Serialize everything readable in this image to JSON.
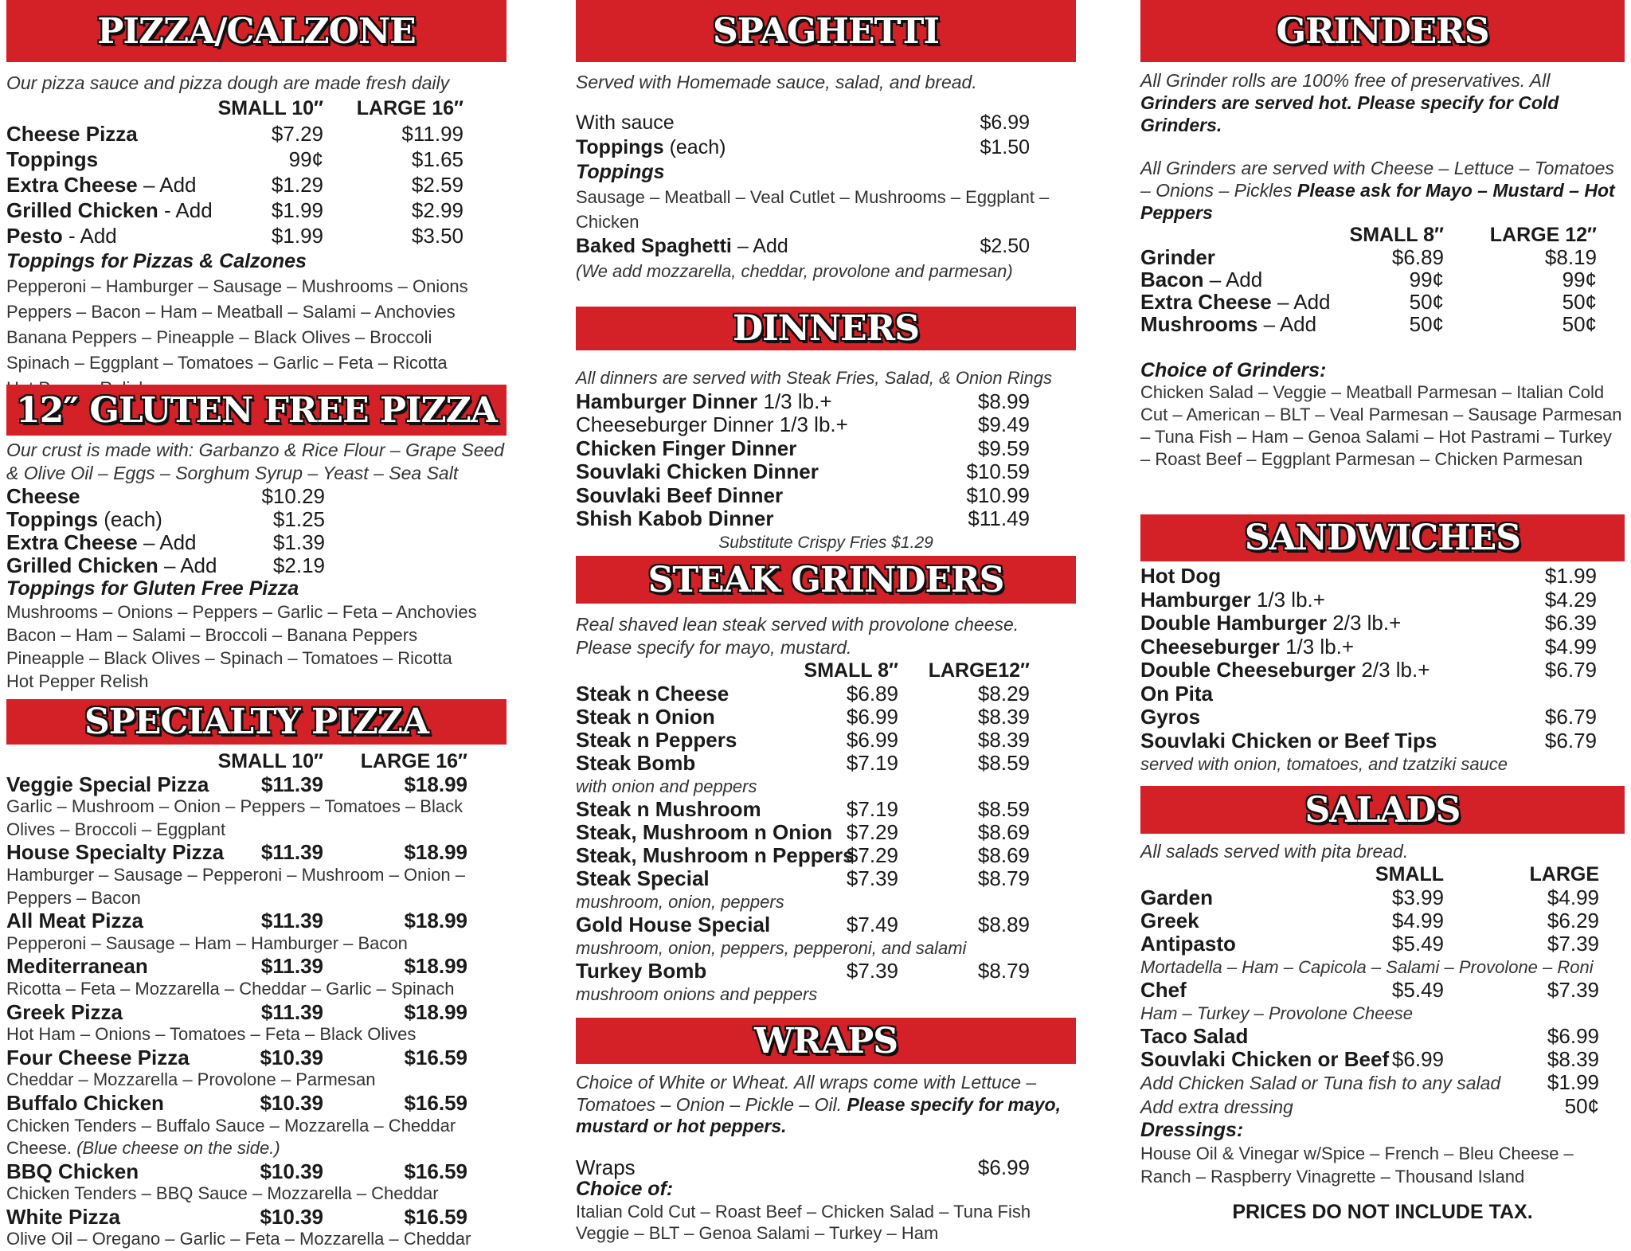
{
  "columns": [
    {
      "sections": [
        {
          "title": "PIZZA/CALZONE",
          "rows": [
            {
              "t": "note",
              "text": "Our pizza sauce and pizza dough are made fresh daily"
            },
            {
              "t": "cols",
              "prices": [
                "SMALL 10″",
                "LARGE 16″"
              ]
            },
            {
              "t": "item",
              "name": "Cheese Pizza",
              "prices": [
                "$7.29",
                "$11.99"
              ]
            },
            {
              "t": "item",
              "name": "Toppings",
              "prices": [
                "99¢",
                "$1.65"
              ]
            },
            {
              "t": "item",
              "name": "Extra Cheese",
              "suffix": " – Add",
              "prices": [
                "$1.29",
                "$2.59"
              ]
            },
            {
              "t": "item",
              "name": "Grilled Chicken",
              "suffix": " - Add",
              "prices": [
                "$1.99",
                "$2.99"
              ]
            },
            {
              "t": "item",
              "name": "Pesto",
              "suffix": " - Add",
              "prices": [
                "$1.99",
                "$3.50"
              ]
            },
            {
              "t": "sub",
              "text": "Toppings for Pizzas & Calzones"
            },
            {
              "t": "desc",
              "text": "Pepperoni – Hamburger – Sausage – Mushrooms – Onions"
            },
            {
              "t": "desc",
              "text": "Peppers – Bacon – Ham – Meatball – Salami – Anchovies"
            },
            {
              "t": "desc",
              "text": "Banana Peppers – Pineapple – Black Olives – Broccoli"
            },
            {
              "t": "desc",
              "text": "Spinach – Eggplant – Tomatoes – Garlic – Feta – Ricotta"
            },
            {
              "t": "desc",
              "text": "Hot Pepper Relish"
            }
          ]
        },
        {
          "title": "12″ GLUTEN FREE PIZZA",
          "rows": [
            {
              "t": "note",
              "text": "Our crust is made with: Garbanzo & Rice Flour –  Grape Seed & Olive Oil – Eggs – Sorghum Syrup – Yeast – Sea Salt"
            },
            {
              "t": "item",
              "name": "Cheese",
              "prices": [
                "$10.29"
              ]
            },
            {
              "t": "item",
              "name": "Toppings",
              "suffix": " (each)",
              "prices": [
                "$1.25"
              ]
            },
            {
              "t": "item",
              "name": "Extra Cheese",
              "suffix": " – Add",
              "prices": [
                "$1.39"
              ]
            },
            {
              "t": "item",
              "name": "Grilled Chicken",
              "suffix": " – Add",
              "prices": [
                "$2.19"
              ]
            },
            {
              "t": "sub",
              "text": "Toppings for Gluten Free Pizza"
            },
            {
              "t": "desc",
              "text": "Mushrooms – Onions – Peppers – Garlic – Feta – Anchovies"
            },
            {
              "t": "desc",
              "text": "Bacon – Ham – Salami – Broccoli – Banana Peppers"
            },
            {
              "t": "desc",
              "text": "Pineapple – Black Olives – Spinach – Tomatoes – Ricotta"
            },
            {
              "t": "desc",
              "text": "Hot Pepper Relish"
            }
          ]
        },
        {
          "title": "SPECIALTY PIZZA",
          "rows": [
            {
              "t": "cols",
              "prices": [
                "SMALL 10″",
                "LARGE 16″"
              ]
            },
            {
              "t": "item",
              "name": "Veggie Special Pizza",
              "prices": [
                "$11.39",
                "$18.99"
              ]
            },
            {
              "t": "desc",
              "text": "Garlic – Mushroom – Onion – Peppers – Tomatoes – Black"
            },
            {
              "t": "desc",
              "text": "Olives – Broccoli – Eggplant"
            },
            {
              "t": "item",
              "name": "House Specialty Pizza",
              "prices": [
                "$11.39",
                "$18.99"
              ]
            },
            {
              "t": "desc",
              "text": "Hamburger – Sausage – Pepperoni – Mushroom – Onion –"
            },
            {
              "t": "desc",
              "text": "Peppers – Bacon"
            },
            {
              "t": "item",
              "name": "All Meat Pizza",
              "prices": [
                "$11.39",
                "$18.99"
              ]
            },
            {
              "t": "desc",
              "text": "Pepperoni – Sausage – Ham – Hamburger – Bacon"
            },
            {
              "t": "item",
              "name": "Mediterranean",
              "prices": [
                "$11.39",
                "$18.99"
              ]
            },
            {
              "t": "desc",
              "text": "Ricotta – Feta – Mozzarella – Cheddar – Garlic – Spinach"
            },
            {
              "t": "item",
              "name": "Greek Pizza",
              "prices": [
                "$11.39",
                "$18.99"
              ]
            },
            {
              "t": "desc",
              "text": "Hot Ham – Onions – Tomatoes – Feta – Black Olives"
            },
            {
              "t": "item",
              "name": "Four Cheese Pizza",
              "prices": [
                "$10.39",
                "$16.59"
              ]
            },
            {
              "t": "desc",
              "text": "Cheddar – Mozzarella – Provolone – Parmesan"
            },
            {
              "t": "item",
              "name": "Buffalo Chicken",
              "prices": [
                "$10.39",
                "$16.59"
              ]
            },
            {
              "t": "desc",
              "text": "Chicken Tenders – Buffalo Sauce – Mozzarella – Cheddar"
            },
            {
              "t": "desc",
              "text": "Cheese. ",
              "em": "(Blue cheese on the side.)"
            },
            {
              "t": "item",
              "name": "BBQ Chicken",
              "prices": [
                "$10.39",
                "$16.59"
              ]
            },
            {
              "t": "desc",
              "text": "Chicken Tenders – BBQ Sauce – Mozzarella – Cheddar"
            },
            {
              "t": "item",
              "name": "White Pizza",
              "prices": [
                "$10.39",
                "$16.59"
              ]
            },
            {
              "t": "desc",
              "text": "Olive Oil – Oregano – Garlic – Feta – Mozzarella – Cheddar"
            }
          ]
        }
      ]
    },
    {
      "sections": [
        {
          "title": "SPAGHETTI",
          "rows": [
            {
              "t": "note",
              "text": "Served with Homemade sauce, salad, and bread."
            },
            {
              "t": "item",
              "suffix": "With sauce",
              "prices": [
                "$6.99"
              ]
            },
            {
              "t": "item",
              "name": "Toppings",
              "suffix": " (each)",
              "prices": [
                "$1.50"
              ]
            },
            {
              "t": "sub",
              "text": "Toppings"
            },
            {
              "t": "desc",
              "text": "Sausage – Meatball – Veal Cutlet – Mushrooms – Eggplant –"
            },
            {
              "t": "desc",
              "text": "Chicken"
            },
            {
              "t": "item",
              "name": "Baked Spaghetti",
              "suffix": "  – Add",
              "prices": [
                "$2.50"
              ]
            },
            {
              "t": "desc",
              "em": "(We add mozzarella, cheddar, provolone and parmesan)"
            }
          ]
        },
        {
          "title": "DINNERS",
          "rows": [
            {
              "t": "desc",
              "em": "All dinners are served with Steak Fries, Salad, & Onion Rings"
            },
            {
              "t": "item",
              "name": "Hamburger Dinner",
              "suffix": " 1/3 lb.+",
              "prices": [
                "$8.99"
              ]
            },
            {
              "t": "item",
              "suffix": "Cheeseburger Dinner 1/3 lb.+",
              "prices": [
                "$9.49"
              ]
            },
            {
              "t": "item",
              "name": "Chicken Finger Dinner",
              "prices": [
                "$9.59"
              ]
            },
            {
              "t": "item",
              "name": "Souvlaki Chicken Dinner",
              "prices": [
                "$10.59"
              ]
            },
            {
              "t": "item",
              "name": "Souvlaki Beef Dinner",
              "prices": [
                "$10.99"
              ]
            },
            {
              "t": "item",
              "name": "Shish Kabob Dinner",
              "prices": [
                "$11.49"
              ]
            },
            {
              "t": "center",
              "text": "Substitute Crispy Fries $1.29"
            }
          ]
        },
        {
          "title": "STEAK GRINDERS",
          "rows": [
            {
              "t": "note",
              "text": "Real shaved lean steak served with provolone cheese. Please specify for mayo, mustard."
            },
            {
              "t": "cols",
              "prices": [
                "SMALL 8″",
                "LARGE12″"
              ]
            },
            {
              "t": "item",
              "name": "Steak n Cheese",
              "prices": [
                "$6.89",
                "$8.29"
              ]
            },
            {
              "t": "item",
              "name": "Steak n Onion",
              "prices": [
                "$6.99",
                "$8.39"
              ]
            },
            {
              "t": "item",
              "name": "Steak n Peppers",
              "prices": [
                "$6.99",
                "$8.39"
              ]
            },
            {
              "t": "item",
              "name": "Steak Bomb",
              "prices": [
                "$7.19",
                "$8.59"
              ]
            },
            {
              "t": "desc",
              "em": "with onion and peppers"
            },
            {
              "t": "item",
              "name": "Steak n Mushroom",
              "prices": [
                "$7.19",
                "$8.59"
              ]
            },
            {
              "t": "item",
              "name": "Steak, Mushroom n Onion",
              "prices": [
                "$7.29",
                "$8.69"
              ]
            },
            {
              "t": "item",
              "name": "Steak, Mushroom n Peppers",
              "prices": [
                "$7.29",
                "$8.69"
              ]
            },
            {
              "t": "item",
              "name": "Steak Special",
              "prices": [
                "$7.39",
                "$8.79"
              ]
            },
            {
              "t": "desc",
              "em": "mushroom, onion, peppers"
            },
            {
              "t": "item",
              "name": "Gold House Special",
              "prices": [
                "$7.49",
                "$8.89"
              ]
            },
            {
              "t": "desc",
              "em": "mushroom, onion, peppers, pepperoni, and salami"
            },
            {
              "t": "item",
              "name": "Turkey Bomb",
              "prices": [
                "$7.39",
                "$8.79"
              ]
            },
            {
              "t": "desc",
              "em": "mushroom onions and peppers"
            }
          ]
        },
        {
          "title": "WRAPS",
          "rows": [
            {
              "t": "note",
              "text": "Choice of White or Wheat. All wraps come with Lettuce – Tomatoes – Onion – Pickle – Oil. ",
              "bold": "Please specify for mayo, mustard or hot peppers."
            },
            {
              "t": "item",
              "suffix": "Wraps",
              "prices": [
                "$6.99"
              ]
            },
            {
              "t": "sub",
              "text": "Choice of:"
            },
            {
              "t": "desc",
              "text": "Italian Cold Cut – Roast Beef – Chicken Salad – Tuna Fish"
            },
            {
              "t": "desc",
              "text": "Veggie – BLT – Genoa Salami – Turkey – Ham"
            }
          ]
        }
      ]
    },
    {
      "sections": [
        {
          "title": "GRINDERS",
          "rows": [
            {
              "t": "note",
              "text": "All Grinder rolls are 100% free of preservatives. All ",
              "bold": "Grinders are served hot. Please specify for Cold Grinders."
            },
            {
              "t": "note",
              "text": "All Grinders are served with Cheese – Lettuce – Tomatoes – Onions – Pickles  ",
              "bold": "Please ask for Mayo – Mustard  – Hot Peppers"
            },
            {
              "t": "cols",
              "prices": [
                "SMALL 8″",
                "LARGE 12″"
              ]
            },
            {
              "t": "item",
              "name": "Grinder",
              "prices": [
                "$6.89",
                "$8.19"
              ]
            },
            {
              "t": "item",
              "name": "Bacon",
              "suffix": " – Add",
              "prices": [
                "99¢",
                "99¢"
              ]
            },
            {
              "t": "item",
              "name": "Extra Cheese",
              "suffix": " – Add",
              "prices": [
                "50¢",
                "50¢"
              ]
            },
            {
              "t": "item",
              "name": "Mushrooms",
              "suffix": " – Add",
              "prices": [
                "50¢",
                "50¢"
              ]
            },
            {
              "t": "sub",
              "text": "Choice of Grinders:"
            },
            {
              "t": "text",
              "text": "Chicken Salad – Veggie – Meatball Parmesan – Italian Cold Cut – American – BLT – Veal Parmesan – Sausage Parmesan – Tuna Fish – Ham – Genoa Salami – Hot Pastrami – Turkey – Roast Beef – Eggplant Parmesan – Chicken Parmesan"
            }
          ]
        },
        {
          "title": "SANDWICHES",
          "rows": [
            {
              "t": "item",
              "name": "Hot Dog",
              "prices": [
                "$1.99"
              ]
            },
            {
              "t": "item",
              "name": "Hamburger",
              "suffix": " 1/3 lb.+",
              "prices": [
                "$4.29"
              ]
            },
            {
              "t": "item",
              "name": "Double Hamburger",
              "suffix": " 2/3 lb.+",
              "prices": [
                "$6.39"
              ]
            },
            {
              "t": "item",
              "name": "Cheeseburger",
              "suffix": " 1/3 lb.+",
              "prices": [
                "$4.99"
              ]
            },
            {
              "t": "item",
              "name": "Double Cheeseburger",
              "suffix": " 2/3 lb.+",
              "prices": [
                "$6.79"
              ]
            },
            {
              "t": "item",
              "name": "On Pita",
              "prices": []
            },
            {
              "t": "item",
              "name": "Gyros",
              "prices": [
                "$6.79"
              ]
            },
            {
              "t": "item",
              "name": "Souvlaki Chicken or Beef Tips",
              "prices": [
                "$6.79"
              ]
            },
            {
              "t": "desc",
              "em": "served with onion, tomatoes, and tzatziki sauce"
            }
          ]
        },
        {
          "title": "SALADS",
          "rows": [
            {
              "t": "note",
              "text": "All salads served with pita bread."
            },
            {
              "t": "cols",
              "prices": [
                "SMALL",
                "LARGE"
              ]
            },
            {
              "t": "item",
              "name": "Garden",
              "prices": [
                "$3.99",
                "$4.99"
              ]
            },
            {
              "t": "item",
              "name": "Greek",
              "prices": [
                "$4.99",
                "$6.29"
              ]
            },
            {
              "t": "item",
              "name": "Antipasto",
              "prices": [
                "$5.49",
                "$7.39"
              ]
            },
            {
              "t": "desc",
              "em": "Mortadella – Ham – Capicola – Salami – Provolone – Roni"
            },
            {
              "t": "item",
              "name": "Chef",
              "prices": [
                "$5.49",
                "$7.39"
              ]
            },
            {
              "t": "desc",
              "em": "Ham – Turkey – Provolone Cheese"
            },
            {
              "t": "item",
              "name": "Taco Salad",
              "prices": [
                "",
                "$6.99"
              ]
            },
            {
              "t": "item",
              "name": "Souvlaki Chicken or Beef",
              "prices": [
                "$6.99",
                "$8.39"
              ]
            },
            {
              "t": "item",
              "em": "Add Chicken Salad or Tuna fish to any salad",
              "prices": [
                "",
                "$1.99"
              ]
            },
            {
              "t": "item",
              "em": "Add extra dressing",
              "prices": [
                "",
                "50¢"
              ]
            },
            {
              "t": "sub",
              "text": "Dressings:"
            },
            {
              "t": "text",
              "text": "House Oil & Vinegar w/Spice – French – Bleu Cheese – Ranch – Raspberry Vinagrette – Thousand Island"
            }
          ]
        }
      ]
    }
  ],
  "footer": "PRICES DO NOT INCLUDE TAX.",
  "colors": {
    "header_red": "#d42027",
    "text": "#1a1a1a"
  }
}
